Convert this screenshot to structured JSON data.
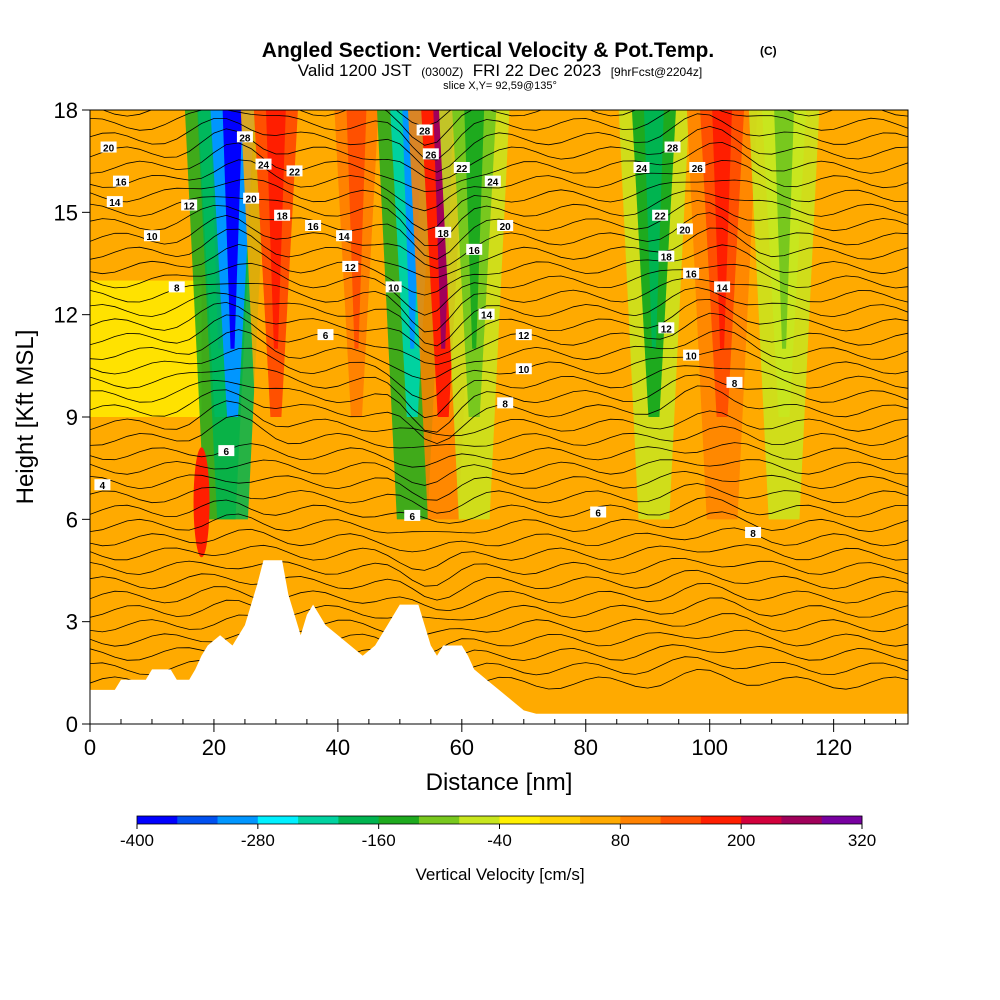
{
  "title": {
    "main": "Angled Section: Vertical Velocity & Pot.Temp.",
    "copyright": "(C)",
    "valid_prefix": "Valid 1200 JST",
    "valid_utc": "(0300Z)",
    "valid_date": "FRI 22 Dec 2023",
    "forecast": "[9hrFcst@2204z]",
    "slice": "slice X,Y= 92,59@135°"
  },
  "chart_data": {
    "type": "heatmap",
    "xlabel": "Distance [nm]",
    "ylabel": "Height [Kft MSL]",
    "xlim": [
      0,
      132
    ],
    "ylim": [
      0,
      18
    ],
    "x_ticks": [
      0,
      20,
      40,
      60,
      80,
      100,
      120
    ],
    "y_ticks": [
      0,
      3,
      6,
      9,
      12,
      15,
      18
    ],
    "grid": false,
    "colorbar": {
      "label": "Vertical Velocity [cm/s]",
      "min": -400,
      "max": 320,
      "step": 40,
      "tick_labels": [
        -400,
        -280,
        -160,
        -40,
        80,
        200,
        320
      ],
      "colors": [
        "#0000ff",
        "#0050f0",
        "#0096ff",
        "#00f0ff",
        "#00d2a0",
        "#00b450",
        "#1eaa1e",
        "#78c81e",
        "#c8e61e",
        "#fff000",
        "#ffd200",
        "#ffaa00",
        "#ff8200",
        "#ff5000",
        "#ff1e00",
        "#d2003c",
        "#a0005a",
        "#7800a0"
      ]
    },
    "velocity_columns": [
      {
        "x": 21,
        "v": -320
      },
      {
        "x": 23,
        "v": -380
      },
      {
        "x": 30,
        "v": 160
      },
      {
        "x": 43,
        "v": 120
      },
      {
        "x": 52,
        "v": -300
      },
      {
        "x": 57,
        "v": 240
      },
      {
        "x": 62,
        "v": -130
      },
      {
        "x": 91,
        "v": -170
      },
      {
        "x": 102,
        "v": 190
      },
      {
        "x": 112,
        "v": -90
      }
    ],
    "terrain_kft": [
      [
        0,
        1.0
      ],
      [
        4,
        1.0
      ],
      [
        5,
        1.3
      ],
      [
        9,
        1.3
      ],
      [
        10,
        1.6
      ],
      [
        13,
        1.6
      ],
      [
        14,
        1.3
      ],
      [
        16,
        1.3
      ],
      [
        17,
        1.6
      ],
      [
        18,
        2.0
      ],
      [
        19,
        2.3
      ],
      [
        21,
        2.6
      ],
      [
        23,
        2.3
      ],
      [
        24,
        2.6
      ],
      [
        25,
        2.9
      ],
      [
        26,
        3.5
      ],
      [
        27,
        4.1
      ],
      [
        28,
        4.8
      ],
      [
        31,
        4.8
      ],
      [
        32,
        3.8
      ],
      [
        33,
        3.2
      ],
      [
        34,
        2.6
      ],
      [
        35,
        3.2
      ],
      [
        36,
        3.5
      ],
      [
        37,
        3.2
      ],
      [
        38,
        2.9
      ],
      [
        40,
        2.6
      ],
      [
        42,
        2.3
      ],
      [
        44,
        2.0
      ],
      [
        46,
        2.3
      ],
      [
        48,
        2.9
      ],
      [
        50,
        3.5
      ],
      [
        53,
        3.5
      ],
      [
        54,
        2.9
      ],
      [
        55,
        2.3
      ],
      [
        56,
        2.0
      ],
      [
        57,
        2.3
      ],
      [
        60,
        2.3
      ],
      [
        61,
        2.0
      ],
      [
        62,
        1.6
      ],
      [
        64,
        1.3
      ],
      [
        66,
        1.0
      ],
      [
        68,
        0.7
      ],
      [
        70,
        0.4
      ],
      [
        72,
        0.3
      ],
      [
        132,
        0.3
      ]
    ],
    "theta_contour_labels": [
      {
        "value": "20",
        "x": 3,
        "y": 16.9
      },
      {
        "value": "16",
        "x": 5,
        "y": 15.9
      },
      {
        "value": "14",
        "x": 4,
        "y": 15.3
      },
      {
        "value": "12",
        "x": 16,
        "y": 15.2
      },
      {
        "value": "10",
        "x": 10,
        "y": 14.3
      },
      {
        "value": "8",
        "x": 14,
        "y": 12.8
      },
      {
        "value": "28",
        "x": 25,
        "y": 17.2
      },
      {
        "value": "24",
        "x": 28,
        "y": 16.4
      },
      {
        "value": "22",
        "x": 33,
        "y": 16.2
      },
      {
        "value": "20",
        "x": 26,
        "y": 15.4
      },
      {
        "value": "18",
        "x": 31,
        "y": 14.9
      },
      {
        "value": "16",
        "x": 36,
        "y": 14.6
      },
      {
        "value": "14",
        "x": 41,
        "y": 14.3
      },
      {
        "value": "12",
        "x": 42,
        "y": 13.4
      },
      {
        "value": "10",
        "x": 49,
        "y": 12.8
      },
      {
        "value": "6",
        "x": 38,
        "y": 11.4
      },
      {
        "value": "6",
        "x": 22,
        "y": 8.0
      },
      {
        "value": "4",
        "x": 2,
        "y": 7.0
      },
      {
        "value": "28",
        "x": 54,
        "y": 17.4
      },
      {
        "value": "26",
        "x": 55,
        "y": 16.7
      },
      {
        "value": "22",
        "x": 60,
        "y": 16.3
      },
      {
        "value": "24",
        "x": 65,
        "y": 15.9
      },
      {
        "value": "18",
        "x": 57,
        "y": 14.4
      },
      {
        "value": "20",
        "x": 67,
        "y": 14.6
      },
      {
        "value": "16",
        "x": 62,
        "y": 13.9
      },
      {
        "value": "14",
        "x": 64,
        "y": 12.0
      },
      {
        "value": "12",
        "x": 70,
        "y": 11.4
      },
      {
        "value": "10",
        "x": 70,
        "y": 10.4
      },
      {
        "value": "8",
        "x": 67,
        "y": 9.4
      },
      {
        "value": "6",
        "x": 52,
        "y": 6.1
      },
      {
        "value": "6",
        "x": 82,
        "y": 6.2
      },
      {
        "value": "28",
        "x": 94,
        "y": 16.9
      },
      {
        "value": "24",
        "x": 89,
        "y": 16.3
      },
      {
        "value": "26",
        "x": 98,
        "y": 16.3
      },
      {
        "value": "22",
        "x": 92,
        "y": 14.9
      },
      {
        "value": "20",
        "x": 96,
        "y": 14.5
      },
      {
        "value": "18",
        "x": 93,
        "y": 13.7
      },
      {
        "value": "16",
        "x": 97,
        "y": 13.2
      },
      {
        "value": "14",
        "x": 102,
        "y": 12.8
      },
      {
        "value": "12",
        "x": 93,
        "y": 11.6
      },
      {
        "value": "10",
        "x": 97,
        "y": 10.8
      },
      {
        "value": "8",
        "x": 104,
        "y": 10.0
      },
      {
        "value": "8",
        "x": 107,
        "y": 5.6
      }
    ]
  }
}
